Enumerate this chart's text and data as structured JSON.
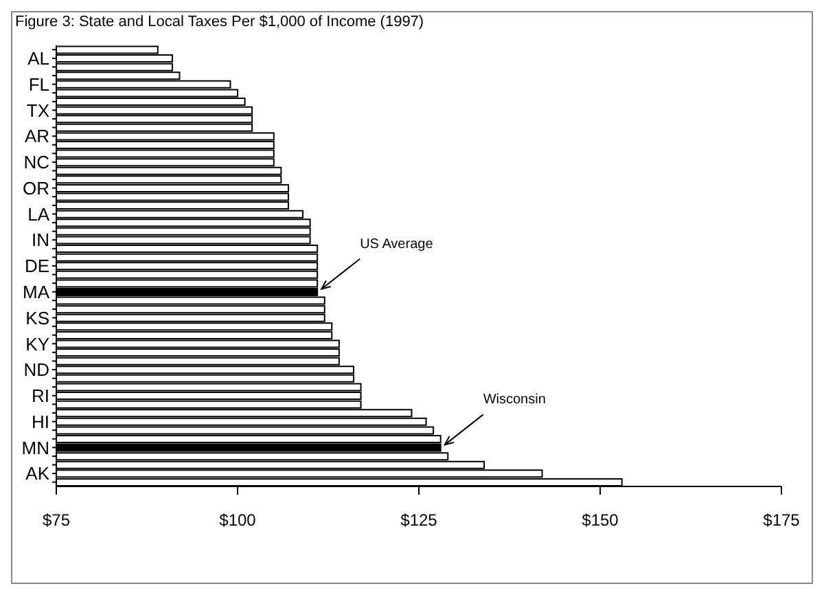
{
  "chart_data": {
    "type": "bar",
    "orientation": "horizontal",
    "title": "Figure 3: State and Local Taxes Per $1,000 of Income  (1997)",
    "categories": [
      null,
      "AL",
      null,
      null,
      "FL",
      null,
      null,
      "TX",
      null,
      null,
      "AR",
      null,
      null,
      "NC",
      null,
      null,
      "OR",
      null,
      null,
      "LA",
      null,
      null,
      "IN",
      null,
      null,
      "DE",
      null,
      null,
      "MA",
      null,
      null,
      "KS",
      null,
      null,
      "KY",
      null,
      null,
      "ND",
      null,
      null,
      "RI",
      null,
      null,
      "HI",
      null,
      null,
      "MN",
      null,
      null,
      "AK",
      null
    ],
    "values": [
      89,
      91,
      91,
      92,
      99,
      100,
      101,
      102,
      102,
      102,
      105,
      105,
      105,
      105,
      106,
      106,
      107,
      107,
      107,
      109,
      110,
      110,
      110,
      111,
      111,
      111,
      111,
      111,
      111,
      112,
      112,
      112,
      113,
      113,
      114,
      114,
      114,
      116,
      116,
      117,
      117,
      117,
      124,
      126,
      127,
      128,
      128,
      129,
      134,
      142,
      153
    ],
    "colors": [
      "#ffffff",
      "#ffffff",
      "#ffffff",
      "#ffffff",
      "#ffffff",
      "#ffffff",
      "#ffffff",
      "#ffffff",
      "#ffffff",
      "#ffffff",
      "#ffffff",
      "#ffffff",
      "#ffffff",
      "#ffffff",
      "#ffffff",
      "#ffffff",
      "#ffffff",
      "#ffffff",
      "#ffffff",
      "#ffffff",
      "#ffffff",
      "#ffffff",
      "#ffffff",
      "#ffffff",
      "#ffffff",
      "#ffffff",
      "#ffffff",
      "#ffffff",
      "#000000",
      "#ffffff",
      "#ffffff",
      "#ffffff",
      "#ffffff",
      "#ffffff",
      "#ffffff",
      "#ffffff",
      "#ffffff",
      "#ffffff",
      "#ffffff",
      "#ffffff",
      "#ffffff",
      "#ffffff",
      "#ffffff",
      "#ffffff",
      "#ffffff",
      "#ffffff",
      "#000000",
      "#ffffff",
      "#ffffff",
      "#ffffff",
      "#ffffff"
    ],
    "xlim": [
      75,
      175
    ],
    "xticks": [
      {
        "value": 75,
        "label": "$75"
      },
      {
        "value": 100,
        "label": "$100"
      },
      {
        "value": 125,
        "label": "$125"
      },
      {
        "value": 150,
        "label": "$150"
      },
      {
        "value": 175,
        "label": "$175"
      }
    ],
    "annotations": [
      "US Average",
      "Wisconsin"
    ],
    "grid": false,
    "legend": false
  }
}
